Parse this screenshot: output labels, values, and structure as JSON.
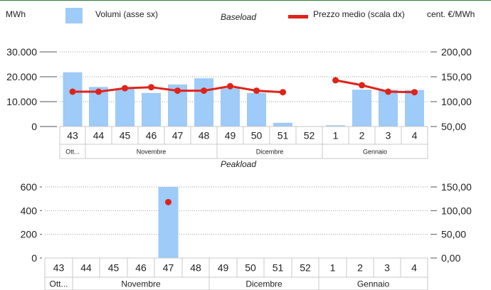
{
  "header": {
    "left_unit": "MWh",
    "right_unit": "cent. €/MWh",
    "legend_volumes": "Volumi (asse sx)",
    "legend_price": "Prezzo medio (scala dx)"
  },
  "colors": {
    "bar": "#9ecbf8",
    "line": "#e0231a",
    "grid": "#999999",
    "axis": "#555555"
  },
  "chart_data": [
    {
      "type": "bar",
      "title": "Baseload",
      "categories": [
        "43",
        "44",
        "45",
        "46",
        "47",
        "48",
        "49",
        "50",
        "51",
        "52",
        "1",
        "2",
        "3",
        "4"
      ],
      "months": [
        {
          "label": "Ott...",
          "span": 1
        },
        {
          "label": "Novembre",
          "span": 5
        },
        {
          "label": "Dicembre",
          "span": 4
        },
        {
          "label": "Gennaio",
          "span": 4
        }
      ],
      "series": [
        {
          "name": "Volumi (asse sx)",
          "axis": "left",
          "values": [
            21800,
            15900,
            15300,
            13500,
            16900,
            19400,
            15400,
            13500,
            1500,
            0,
            500,
            14800,
            14800,
            14700
          ]
        },
        {
          "name": "Prezzo medio (scala dx)",
          "axis": "right",
          "type": "line",
          "values": [
            120,
            120,
            127,
            129,
            122,
            122,
            131,
            122,
            119,
            null,
            143,
            133,
            120,
            119
          ]
        }
      ],
      "ylim_left": [
        0,
        30000
      ],
      "ylim_right": [
        50,
        200
      ],
      "yticks_left": [
        "0",
        "10.000",
        "20.000",
        "30.000"
      ],
      "yticks_right": [
        "50,00",
        "100,00",
        "150,00",
        "200,00"
      ],
      "grid": true
    },
    {
      "type": "bar",
      "title": "Peakload",
      "categories": [
        "43",
        "44",
        "45",
        "46",
        "47",
        "48",
        "49",
        "50",
        "51",
        "52",
        "1",
        "2",
        "3",
        "4"
      ],
      "months": [
        {
          "label": "Ott...",
          "span": 1
        },
        {
          "label": "Novembre",
          "span": 5
        },
        {
          "label": "Dicembre",
          "span": 4
        },
        {
          "label": "Gennaio",
          "span": 4
        }
      ],
      "series": [
        {
          "name": "Volumi (asse sx)",
          "axis": "left",
          "values": [
            0,
            0,
            0,
            0,
            620,
            0,
            0,
            0,
            0,
            0,
            0,
            0,
            0,
            0
          ]
        },
        {
          "name": "Prezzo medio (scala dx)",
          "axis": "right",
          "type": "point",
          "values": [
            null,
            null,
            null,
            null,
            118,
            null,
            null,
            null,
            null,
            null,
            null,
            null,
            null,
            null
          ]
        }
      ],
      "ylim_left": [
        0,
        600
      ],
      "ylim_right": [
        0,
        150
      ],
      "yticks_left": [
        "0",
        "200",
        "400",
        "600"
      ],
      "yticks_right": [
        "0,00",
        "50,00",
        "100,00",
        "150,00"
      ],
      "grid": true
    }
  ]
}
